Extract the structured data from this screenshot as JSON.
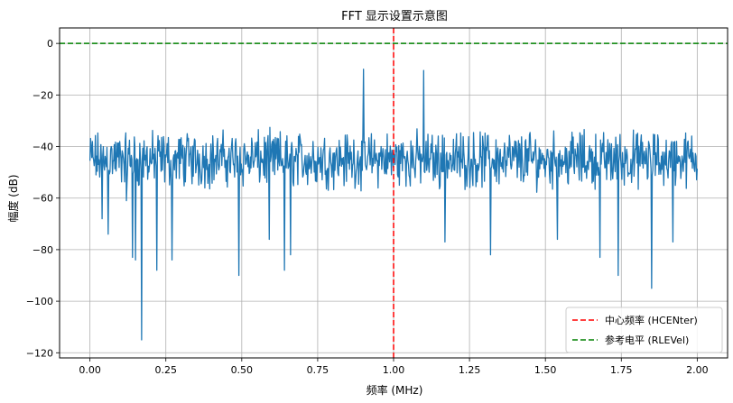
{
  "chart_data": {
    "type": "line",
    "title": "FFT 显示设置示意图",
    "xlabel": "频率 (MHz)",
    "ylabel": "幅度 (dB)",
    "xlim": [
      -0.1,
      2.1
    ],
    "ylim": [
      -122,
      6
    ],
    "x_ticks": [
      0.0,
      0.25,
      0.5,
      0.75,
      1.0,
      1.25,
      1.5,
      1.75,
      2.0
    ],
    "x_tick_labels": [
      "0.00",
      "0.25",
      "0.50",
      "0.75",
      "1.00",
      "1.25",
      "1.50",
      "1.75",
      "2.00"
    ],
    "y_ticks": [
      0,
      -20,
      -40,
      -60,
      -80,
      -100,
      -120
    ],
    "y_tick_labels": [
      "0",
      "−20",
      "−40",
      "−60",
      "−80",
      "−100",
      "−120"
    ],
    "grid": true,
    "legend_position": "bottom-right",
    "series": [
      {
        "name": "",
        "color": "#1f77b4",
        "style": "solid",
        "x_range": [
          0.0,
          2.0
        ],
        "points": 1000,
        "noise_floor_db": -45,
        "peaks": [
          {
            "x": 0.9,
            "y": -10
          },
          {
            "x": 1.1,
            "y": -10.5
          }
        ],
        "dips": [
          {
            "x": 0.02,
            "y": -51
          },
          {
            "x": 0.04,
            "y": -68
          },
          {
            "x": 0.06,
            "y": -74
          },
          {
            "x": 0.12,
            "y": -61
          },
          {
            "x": 0.14,
            "y": -83
          },
          {
            "x": 0.15,
            "y": -84
          },
          {
            "x": 0.17,
            "y": -115
          },
          {
            "x": 0.22,
            "y": -88
          },
          {
            "x": 0.27,
            "y": -84
          },
          {
            "x": 0.49,
            "y": -90
          },
          {
            "x": 0.59,
            "y": -76
          },
          {
            "x": 0.64,
            "y": -88
          },
          {
            "x": 0.66,
            "y": -82
          },
          {
            "x": 1.17,
            "y": -77
          },
          {
            "x": 1.32,
            "y": -82
          },
          {
            "x": 1.54,
            "y": -76
          },
          {
            "x": 1.68,
            "y": -83
          },
          {
            "x": 1.74,
            "y": -90
          },
          {
            "x": 1.85,
            "y": -95
          },
          {
            "x": 1.92,
            "y": -77
          }
        ]
      },
      {
        "name": "中心频率 (HCENter)",
        "color": "#ff0000",
        "style": "dashed",
        "orientation": "vertical",
        "value": 1.0
      },
      {
        "name": "参考电平 (RLEVel)",
        "color": "#008000",
        "style": "dashed",
        "orientation": "horizontal",
        "value": 0
      }
    ]
  }
}
